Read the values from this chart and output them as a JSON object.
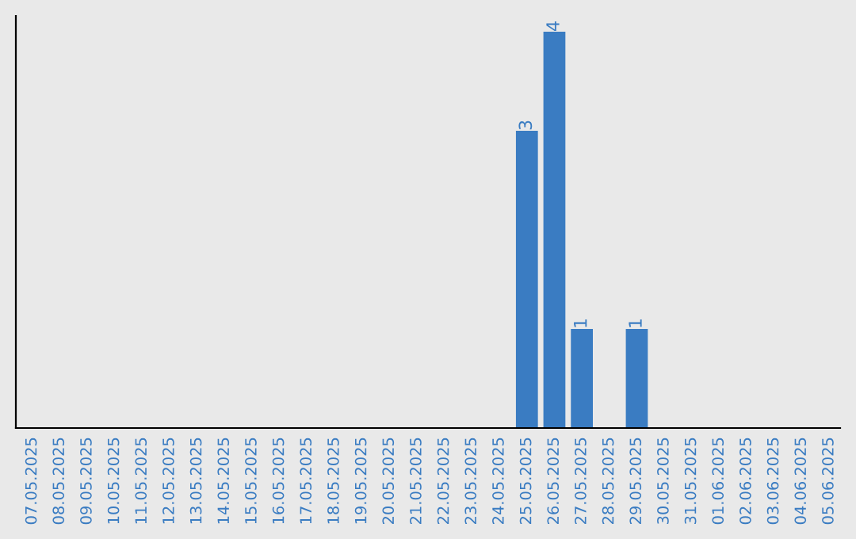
{
  "chart_data": {
    "type": "bar",
    "categories": [
      "07.05.2025",
      "08.05.2025",
      "09.05.2025",
      "10.05.2025",
      "11.05.2025",
      "12.05.2025",
      "13.05.2025",
      "14.05.2025",
      "15.05.2025",
      "16.05.2025",
      "17.05.2025",
      "18.05.2025",
      "19.05.2025",
      "20.05.2025",
      "21.05.2025",
      "22.05.2025",
      "23.05.2025",
      "24.05.2025",
      "25.05.2025",
      "26.05.2025",
      "27.05.2025",
      "28.05.2025",
      "29.05.2025",
      "30.05.2025",
      "31.05.2025",
      "01.06.2025",
      "02.06.2025",
      "03.06.2025",
      "04.06.2025",
      "05.06.2025"
    ],
    "values": [
      null,
      null,
      null,
      null,
      null,
      null,
      null,
      null,
      null,
      null,
      null,
      null,
      null,
      null,
      null,
      null,
      null,
      null,
      3,
      4,
      1,
      null,
      1,
      null,
      null,
      null,
      null,
      null,
      null,
      null
    ],
    "ylim": [
      0,
      4.16
    ],
    "value_labels": [
      null,
      null,
      null,
      null,
      null,
      null,
      null,
      null,
      null,
      null,
      null,
      null,
      null,
      null,
      null,
      null,
      null,
      null,
      "3",
      "4",
      "1",
      null,
      "1",
      null,
      null,
      null,
      null,
      null,
      null,
      null
    ],
    "color": "#3a7cc2",
    "tick_labels": "x",
    "grid": false,
    "legend": false
  }
}
